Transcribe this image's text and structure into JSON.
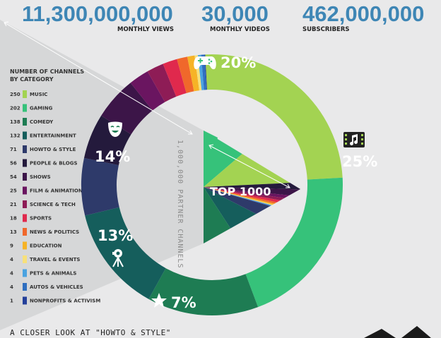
{
  "stats": [
    {
      "value": "11,300,000,000",
      "label": "MONTHLY VIEWS"
    },
    {
      "value": "30,000",
      "label": "MONTHLY VIDEOS"
    },
    {
      "value": "462,000,000",
      "label": "SUBSCRIBERS"
    }
  ],
  "legend": {
    "heading_line1": "NUMBER OF CHANNELS",
    "heading_line2": "BY CATEGORY"
  },
  "partner_label": "1,000,000 PARTNER CHANNELS",
  "center_label": "TOP 1000",
  "footer_text": "A CLOSER LOOK AT \"HOWTO & STYLE\"",
  "icons": {
    "gaming": "game-controller-icon",
    "music": "music-film-icon",
    "comedy": "theater-mask-icon",
    "entertainment": "camera-tripod-icon",
    "howto": "star-icon"
  },
  "chart_data": {
    "type": "pie",
    "total_channels": 1000,
    "categories": [
      {
        "name": "MUSIC",
        "count": 250,
        "color": "#a3d352",
        "label": "25%"
      },
      {
        "name": "GAMING",
        "count": 202,
        "color": "#36c27a",
        "label": "20%"
      },
      {
        "name": "COMEDY",
        "count": 138,
        "color": "#1e7c53",
        "label": "14%"
      },
      {
        "name": "ENTERTAINMENT",
        "count": 132,
        "color": "#155e5c",
        "label": "13%"
      },
      {
        "name": "HOWTO & STYLE",
        "count": 71,
        "color": "#2e3a6a",
        "label": "7%"
      },
      {
        "name": "PEOPLE & BLOGS",
        "count": 56,
        "color": "#241a3c",
        "label": ""
      },
      {
        "name": "SHOWS",
        "count": 54,
        "color": "#3c1548",
        "label": ""
      },
      {
        "name": "FILM & ANIMATION",
        "count": 25,
        "color": "#6a1560",
        "label": ""
      },
      {
        "name": "SCIENCE & TECH",
        "count": 21,
        "color": "#8e1c56",
        "label": ""
      },
      {
        "name": "SPORTS",
        "count": 18,
        "color": "#e0294d",
        "label": ""
      },
      {
        "name": "NEWS & POLITICS",
        "count": 13,
        "color": "#f0682b",
        "label": ""
      },
      {
        "name": "EDUCATION",
        "count": 9,
        "color": "#f6b326",
        "label": ""
      },
      {
        "name": "TRAVEL & EVENTS",
        "count": 4,
        "color": "#f7e07a",
        "label": ""
      },
      {
        "name": "PETS & ANIMALS",
        "count": 4,
        "color": "#4aa3e0",
        "label": ""
      },
      {
        "name": "AUTOS & VEHICLES",
        "count": 4,
        "color": "#2f6fc0",
        "label": ""
      },
      {
        "name": "NONPROFITS & ACTIVISM",
        "count": 1,
        "color": "#24409a",
        "label": ""
      }
    ]
  }
}
